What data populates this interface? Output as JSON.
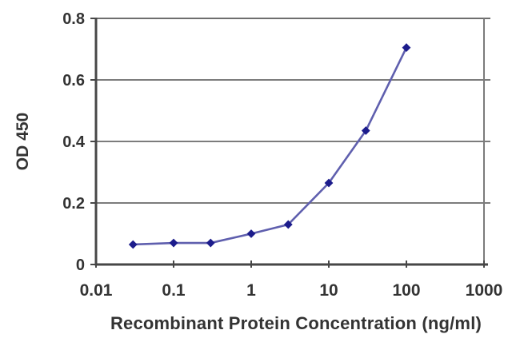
{
  "figure": {
    "background": "#ffffff"
  },
  "colors": {
    "gridline": "#7c7c7c",
    "top_border": "#6e6e6e",
    "axis": "#474747",
    "text": "#333333"
  },
  "chart_data": {
    "type": "line",
    "title": "",
    "xlabel": "Recombinant Protein Concentration (ng/ml)",
    "ylabel": "OD 450",
    "x_scale": "log10",
    "xlim": [
      0.01,
      1000
    ],
    "ylim": [
      0,
      0.8
    ],
    "x_ticks": [
      0.01,
      0.1,
      1,
      10,
      100,
      1000
    ],
    "x_tick_labels": [
      "0.01",
      "0.1",
      "1",
      "10",
      "100",
      "1000"
    ],
    "y_ticks": [
      0,
      0.2,
      0.4,
      0.6,
      0.8
    ],
    "y_tick_labels": [
      "0",
      "0.2",
      "0.4",
      "0.6",
      "0.8"
    ],
    "grid": "horizontal",
    "legend": "none",
    "series": [
      {
        "name": "OD 450",
        "x": [
          0.03,
          0.1,
          0.3,
          1,
          3,
          10,
          30,
          100
        ],
        "y": [
          0.065,
          0.07,
          0.07,
          0.1,
          0.13,
          0.265,
          0.435,
          0.705
        ],
        "line_color": "#5f5fae",
        "marker": "diamond",
        "marker_color": "#1c1c8c"
      }
    ]
  }
}
